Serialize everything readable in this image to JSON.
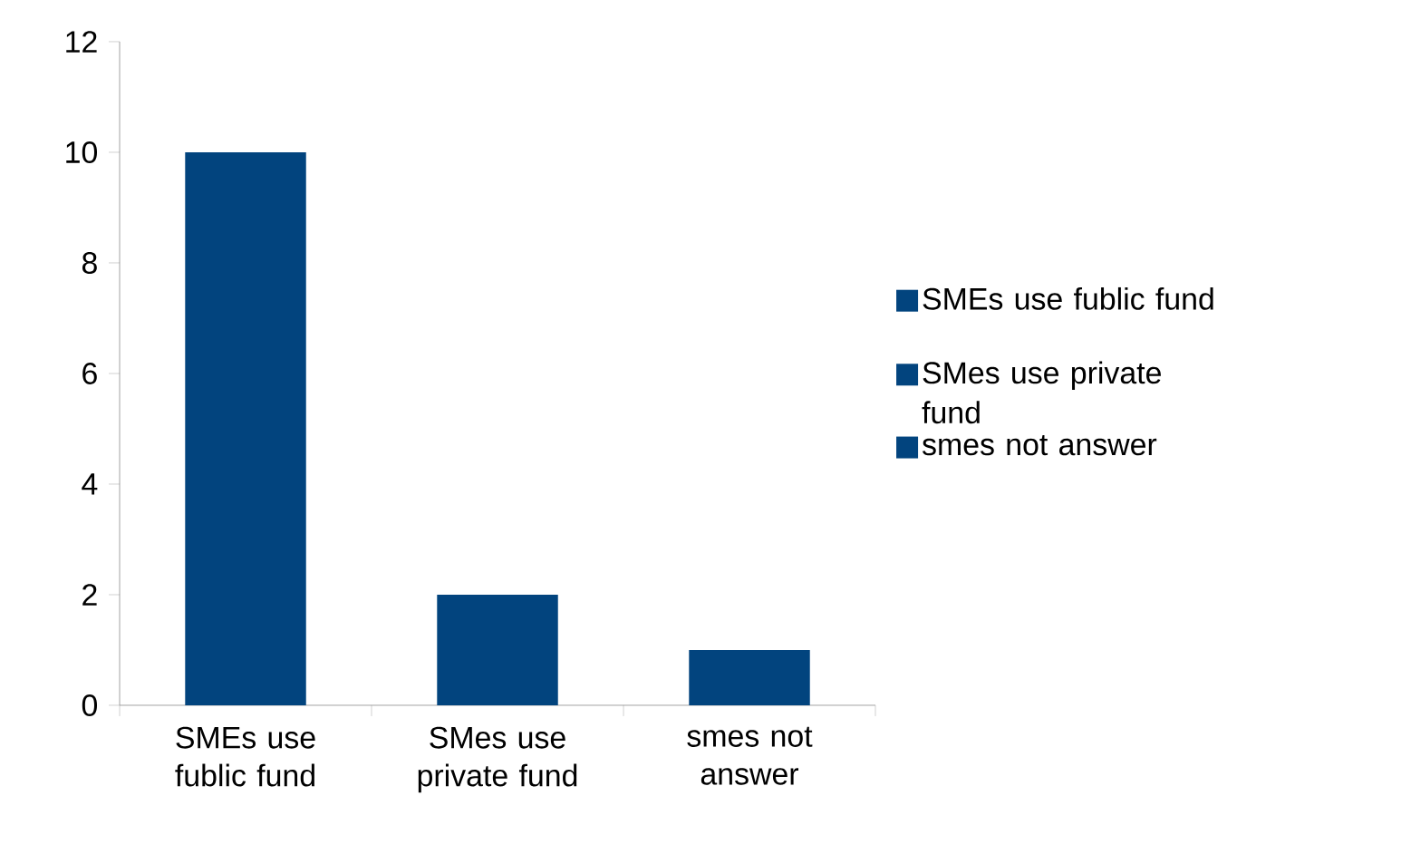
{
  "chart_data": {
    "type": "bar",
    "categories": [
      "SMEs use fublic fund",
      "SMes use private fund",
      "smes not answer"
    ],
    "series": [
      {
        "name": "SMEs use fublic fund",
        "color": "#02447e",
        "values": [
          10,
          null,
          null
        ]
      },
      {
        "name": "SMes use private fund",
        "color": "#02447e",
        "values": [
          null,
          2,
          null
        ]
      },
      {
        "name": "smes not answer",
        "color": "#02447e",
        "values": [
          null,
          null,
          1
        ]
      }
    ],
    "ylim": [
      0,
      12
    ],
    "yticks": [
      0,
      2,
      4,
      6,
      8,
      10,
      12
    ],
    "legend": "right"
  }
}
